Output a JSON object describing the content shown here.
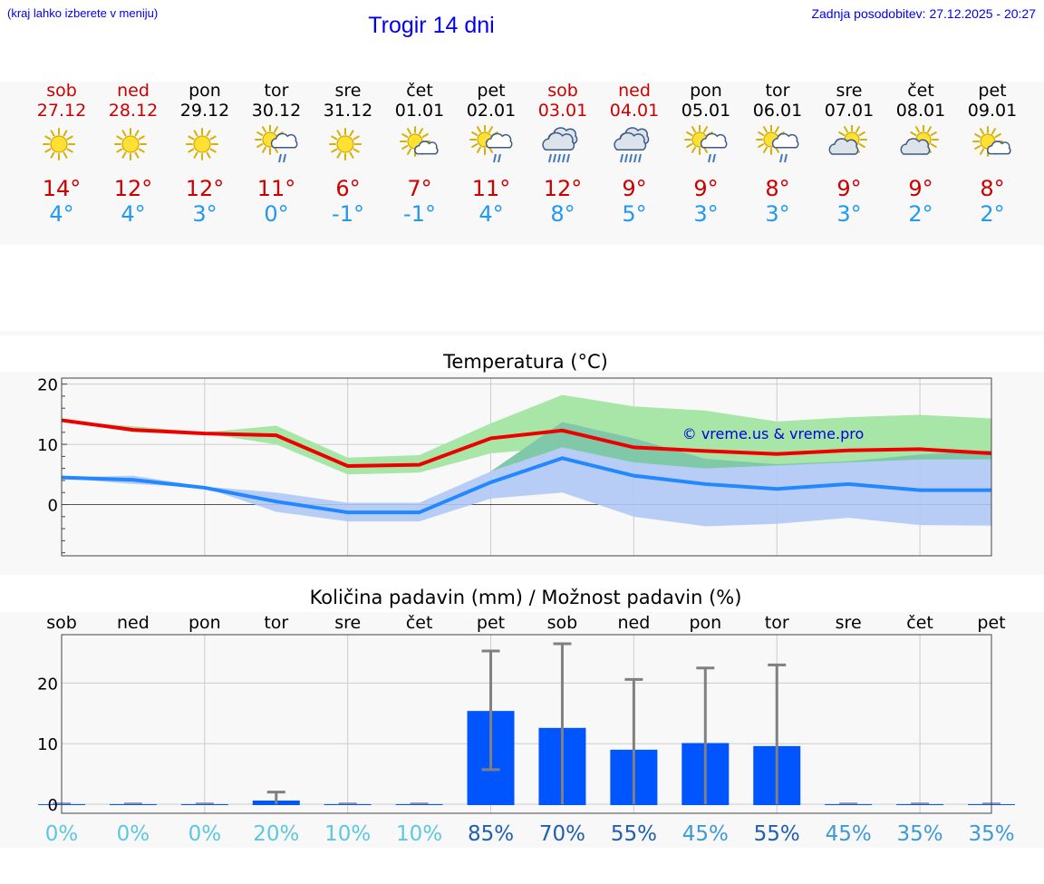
{
  "header": {
    "hint": "(kraj lahko izberete v meniju)",
    "title": "Trogir 14 dni",
    "updated": "Zadnja posodobitev: 27.12.2025 - 20:27"
  },
  "days": [
    {
      "name": "sob",
      "date": "27.12",
      "weekend": true,
      "icon": "sun-icon",
      "max": "14°",
      "min": "4°"
    },
    {
      "name": "ned",
      "date": "28.12",
      "weekend": true,
      "icon": "sun-icon",
      "max": "12°",
      "min": "4°"
    },
    {
      "name": "pon",
      "date": "29.12",
      "weekend": false,
      "icon": "sun-icon",
      "max": "12°",
      "min": "3°"
    },
    {
      "name": "tor",
      "date": "30.12",
      "weekend": false,
      "icon": "sun-cloud-rain-icon",
      "max": "11°",
      "min": "0°"
    },
    {
      "name": "sre",
      "date": "31.12",
      "weekend": false,
      "icon": "sun-icon",
      "max": "6°",
      "min": "-1°"
    },
    {
      "name": "čet",
      "date": "01.01",
      "weekend": false,
      "icon": "sun-small-cloud-icon",
      "max": "7°",
      "min": "-1°"
    },
    {
      "name": "pet",
      "date": "02.01",
      "weekend": false,
      "icon": "sun-cloud-rain-icon",
      "max": "11°",
      "min": "4°"
    },
    {
      "name": "sob",
      "date": "03.01",
      "weekend": true,
      "icon": "cloud-rain-icon",
      "max": "12°",
      "min": "8°"
    },
    {
      "name": "ned",
      "date": "04.01",
      "weekend": true,
      "icon": "cloud-rain-icon",
      "max": "9°",
      "min": "5°"
    },
    {
      "name": "pon",
      "date": "05.01",
      "weekend": false,
      "icon": "sun-cloud-rain-icon",
      "max": "9°",
      "min": "3°"
    },
    {
      "name": "tor",
      "date": "06.01",
      "weekend": false,
      "icon": "sun-cloud-rain-icon",
      "max": "8°",
      "min": "3°"
    },
    {
      "name": "sre",
      "date": "07.01",
      "weekend": false,
      "icon": "sun-cloud-icon",
      "max": "9°",
      "min": "3°"
    },
    {
      "name": "čet",
      "date": "08.01",
      "weekend": false,
      "icon": "sun-cloud-icon",
      "max": "9°",
      "min": "2°"
    },
    {
      "name": "pet",
      "date": "09.01",
      "weekend": false,
      "icon": "sun-small-cloud-icon",
      "max": "8°",
      "min": "2°"
    }
  ],
  "colors": {
    "max": "#ee0000",
    "min": "#2288ff",
    "maxBand": "#a8e6a8",
    "minBand": "#b0c8f4",
    "overlap": "#7fc9a8",
    "bar": "#0055ff",
    "errorbar": "#808080"
  },
  "chart_data": [
    {
      "type": "line",
      "title": "Temperatura (°C)",
      "watermark": "© vreme.us & vreme.pro",
      "x": [
        "sob",
        "ned",
        "pon",
        "tor",
        "sre",
        "čet",
        "pet",
        "sob",
        "ned",
        "pon",
        "tor",
        "sre",
        "čet",
        "pet"
      ],
      "ylim": [
        -8.5,
        21
      ],
      "yticks": [
        0,
        10,
        20
      ],
      "series": [
        {
          "name": "max",
          "values": [
            14,
            12.4,
            11.8,
            11.5,
            6.4,
            6.6,
            11,
            12.3,
            9.5,
            8.9,
            8.4,
            9.0,
            9.2,
            8.5
          ],
          "band_low": [
            14,
            12,
            11.8,
            10,
            5,
            5.3,
            8.5,
            9.5,
            7,
            6,
            6.5,
            7,
            7.5,
            7.5
          ],
          "band_high": [
            14,
            13,
            12,
            13.1,
            7.8,
            8.2,
            13.5,
            18.2,
            16.3,
            15.6,
            13.8,
            14.5,
            14.9,
            14.3
          ]
        },
        {
          "name": "min",
          "values": [
            4.5,
            4.1,
            2.8,
            0.5,
            -1.3,
            -1.3,
            3.7,
            7.7,
            4.8,
            3.4,
            2.6,
            3.4,
            2.4,
            2.4
          ],
          "band_low": [
            4.4,
            3.4,
            2.8,
            -1.2,
            -2.8,
            -2.8,
            1.0,
            2.0,
            -2.0,
            -3.6,
            -3.2,
            -2.2,
            -3.4,
            -3.5
          ],
          "band_high": [
            4.5,
            4.8,
            3.0,
            2.0,
            0.3,
            0.3,
            5.5,
            13.7,
            11.0,
            7.6,
            6.7,
            7.2,
            8.3,
            9.0
          ]
        }
      ]
    },
    {
      "type": "bar",
      "title": "Količina padavin (mm) / Možnost padavin (%)",
      "categories": [
        "sob",
        "ned",
        "pon",
        "tor",
        "sre",
        "čet",
        "pet",
        "sob",
        "ned",
        "pon",
        "tor",
        "sre",
        "čet",
        "pet"
      ],
      "values": [
        0,
        0,
        0,
        0.6,
        0,
        0,
        15.4,
        12.6,
        9.0,
        10.1,
        9.6,
        0,
        0,
        0
      ],
      "error_low": [
        0,
        0,
        0,
        0,
        0,
        0,
        5.7,
        0,
        0,
        0,
        0,
        0,
        0,
        0
      ],
      "error_high": [
        0,
        0,
        0,
        2.0,
        0,
        0,
        25.3,
        26.5,
        20.6,
        22.5,
        23.0,
        0,
        0,
        0
      ],
      "probability": [
        "0%",
        "0%",
        "0%",
        "20%",
        "10%",
        "10%",
        "85%",
        "70%",
        "55%",
        "45%",
        "55%",
        "45%",
        "35%",
        "35%"
      ],
      "probability_values": [
        0,
        0,
        0,
        20,
        10,
        10,
        85,
        70,
        55,
        45,
        55,
        45,
        35,
        35
      ],
      "ylim": [
        -1.5,
        28
      ],
      "yticks": [
        0,
        10,
        20
      ]
    }
  ]
}
